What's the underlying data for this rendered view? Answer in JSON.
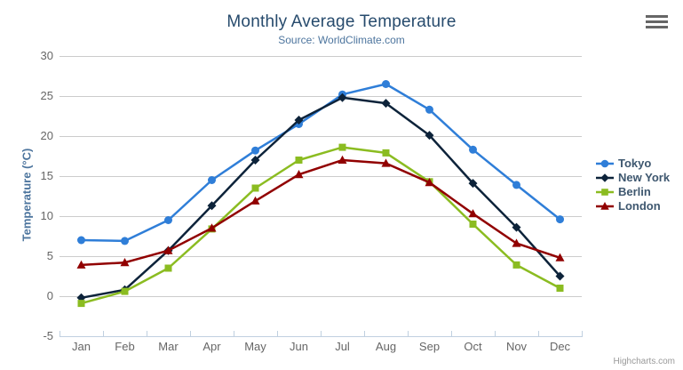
{
  "chart_data": {
    "type": "line",
    "title": "Monthly Average Temperature",
    "subtitle": "Source: WorldClimate.com",
    "ylabel": "Temperature (°C)",
    "xlabel": "",
    "ylim": [
      -5,
      30
    ],
    "ytick_step": 5,
    "grid": true,
    "legend_position": "right",
    "categories": [
      "Jan",
      "Feb",
      "Mar",
      "Apr",
      "May",
      "Jun",
      "Jul",
      "Aug",
      "Sep",
      "Oct",
      "Nov",
      "Dec"
    ],
    "series": [
      {
        "name": "Tokyo",
        "color": "#2f7ed8",
        "marker": "circle",
        "values": [
          7.0,
          6.9,
          9.5,
          14.5,
          18.2,
          21.5,
          25.2,
          26.5,
          23.3,
          18.3,
          13.9,
          9.6
        ]
      },
      {
        "name": "New York",
        "color": "#0d233a",
        "marker": "diamond",
        "values": [
          -0.2,
          0.8,
          5.7,
          11.3,
          17.0,
          22.0,
          24.8,
          24.1,
          20.1,
          14.1,
          8.6,
          2.5
        ]
      },
      {
        "name": "Berlin",
        "color": "#8bbc21",
        "marker": "square",
        "values": [
          -0.9,
          0.6,
          3.5,
          8.4,
          13.5,
          17.0,
          18.6,
          17.9,
          14.3,
          9.0,
          3.9,
          1.0
        ]
      },
      {
        "name": "London",
        "color": "#910000",
        "marker": "triangle",
        "values": [
          3.9,
          4.2,
          5.7,
          8.5,
          11.9,
          15.2,
          17.0,
          16.6,
          14.2,
          10.3,
          6.6,
          4.8
        ]
      }
    ]
  },
  "credits": "Highcharts.com",
  "icons": {
    "menu": "hamburger-icon"
  },
  "colors": {
    "title": "#274b6d",
    "subtitle": "#4d759e",
    "axis_title": "#4d759e",
    "axis_labels": "#666666",
    "gridline": "#cccccc",
    "axis_line": "#c0d0e0",
    "legend_text": "#3e576f",
    "credits_text": "#999999",
    "menu_icon": "#666666",
    "background": "#ffffff"
  }
}
